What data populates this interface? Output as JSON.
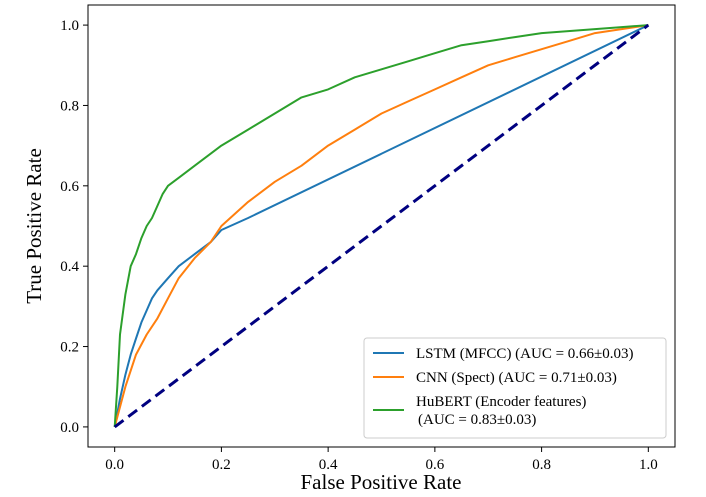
{
  "chart_data": {
    "type": "line",
    "title": "",
    "xlabel": "False Positive Rate",
    "ylabel": "True Positive Rate",
    "xlim": [
      -0.05,
      1.05
    ],
    "ylim": [
      -0.05,
      1.05
    ],
    "xticks": [
      0.0,
      0.2,
      0.4,
      0.6,
      0.8,
      1.0
    ],
    "yticks": [
      0.0,
      0.2,
      0.4,
      0.6,
      0.8,
      1.0
    ],
    "tick_labels": [
      "0.0",
      "0.2",
      "0.4",
      "0.6",
      "0.8",
      "1.0"
    ],
    "grid": false,
    "legend_position": "lower-right",
    "series": [
      {
        "name": "LSTM (MFCC) (AUC = 0.66±0.03)",
        "color": "#1f77b4",
        "style": "solid",
        "x": [
          0,
          0.01,
          0.02,
          0.03,
          0.04,
          0.05,
          0.06,
          0.07,
          0.08,
          0.1,
          0.12,
          0.15,
          0.18,
          0.2,
          0.25,
          1.0
        ],
        "y": [
          0,
          0.07,
          0.13,
          0.18,
          0.22,
          0.26,
          0.29,
          0.32,
          0.34,
          0.37,
          0.4,
          0.43,
          0.46,
          0.49,
          0.52,
          1.0
        ]
      },
      {
        "name": "CNN (Spect) (AUC = 0.71±0.03)",
        "color": "#ff7f0e",
        "style": "solid",
        "x": [
          0,
          0.02,
          0.04,
          0.06,
          0.08,
          0.1,
          0.12,
          0.15,
          0.18,
          0.2,
          0.25,
          0.3,
          0.35,
          0.4,
          0.45,
          0.5,
          0.55,
          0.6,
          0.65,
          0.7,
          0.75,
          0.8,
          0.85,
          0.9,
          0.95,
          1.0
        ],
        "y": [
          0,
          0.1,
          0.18,
          0.23,
          0.27,
          0.32,
          0.37,
          0.42,
          0.46,
          0.5,
          0.56,
          0.61,
          0.65,
          0.7,
          0.74,
          0.78,
          0.81,
          0.84,
          0.87,
          0.9,
          0.92,
          0.94,
          0.96,
          0.98,
          0.99,
          1.0
        ]
      },
      {
        "name": "HuBERT (Encoder features)\n(AUC = 0.83±0.03)",
        "color": "#2ca02c",
        "style": "solid",
        "x": [
          0,
          0.005,
          0.01,
          0.02,
          0.03,
          0.04,
          0.05,
          0.06,
          0.07,
          0.08,
          0.09,
          0.1,
          0.12,
          0.15,
          0.2,
          0.25,
          0.3,
          0.35,
          0.4,
          0.45,
          0.5,
          0.55,
          0.6,
          0.65,
          0.7,
          0.75,
          0.8,
          0.85,
          0.9,
          0.95,
          1.0
        ],
        "y": [
          0,
          0.1,
          0.23,
          0.33,
          0.4,
          0.43,
          0.47,
          0.5,
          0.52,
          0.55,
          0.58,
          0.6,
          0.62,
          0.65,
          0.7,
          0.74,
          0.78,
          0.82,
          0.84,
          0.87,
          0.89,
          0.91,
          0.93,
          0.95,
          0.96,
          0.97,
          0.98,
          0.985,
          0.99,
          0.995,
          1.0
        ]
      },
      {
        "name": "",
        "color": "#000080",
        "style": "dashed",
        "x": [
          0,
          1
        ],
        "y": [
          0,
          1
        ]
      }
    ],
    "legend": [
      "LSTM (MFCC) (AUC = 0.66±0.03)",
      "CNN (Spect) (AUC = 0.71±0.03)",
      "HuBERT (Encoder features)",
      "(AUC = 0.83±0.03)"
    ]
  }
}
